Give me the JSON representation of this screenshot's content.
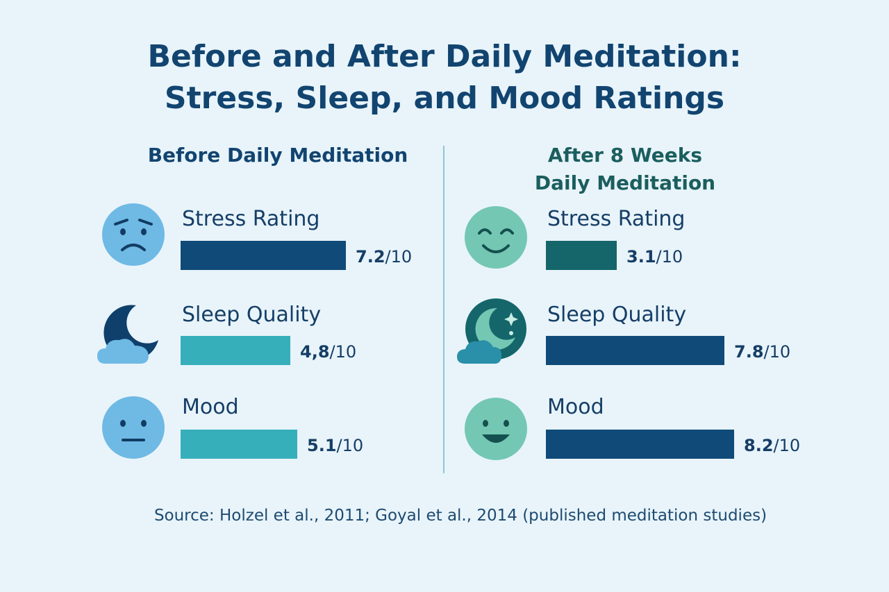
{
  "chart_data": {
    "type": "bar",
    "title_lines": [
      "Before and After Daily Meditation:",
      "Stress, Sleep, and Mood Ratings"
    ],
    "scale_max": 10,
    "panels": [
      {
        "heading_lines": [
          "Before Daily Meditation"
        ],
        "metrics": [
          {
            "label": "Stress Rating",
            "value": 7.2,
            "value_text": "7.2",
            "suffix": "/10",
            "color": "#0f4a78",
            "icon": "worried-face-icon"
          },
          {
            "label": "Sleep Quality",
            "value": 4.8,
            "value_text": "4,8",
            "suffix": "/10",
            "color": "#36afbb",
            "icon": "moon-cloud-icon"
          },
          {
            "label": "Mood",
            "value": 5.1,
            "value_text": "5.1",
            "suffix": "/10",
            "color": "#36afbb",
            "icon": "neutral-face-icon"
          }
        ]
      },
      {
        "heading_lines": [
          "After 8 Weeks",
          "Daily Meditation"
        ],
        "metrics": [
          {
            "label": "Stress Rating",
            "value": 3.1,
            "value_text": "3.1",
            "suffix": "/10",
            "color": "#14666a",
            "icon": "smiling-face-icon"
          },
          {
            "label": "Sleep Quality",
            "value": 7.8,
            "value_text": "7.8",
            "suffix": "/10",
            "color": "#0f4a78",
            "icon": "moon-star-cloud-icon"
          },
          {
            "label": "Mood",
            "value": 8.2,
            "value_text": "8.2",
            "suffix": "/10",
            "color": "#0f4a78",
            "icon": "happy-face-icon"
          }
        ]
      }
    ],
    "source": "Source: Holzel et al., 2011; Goyal et al., 2014 (published meditation studies)"
  }
}
